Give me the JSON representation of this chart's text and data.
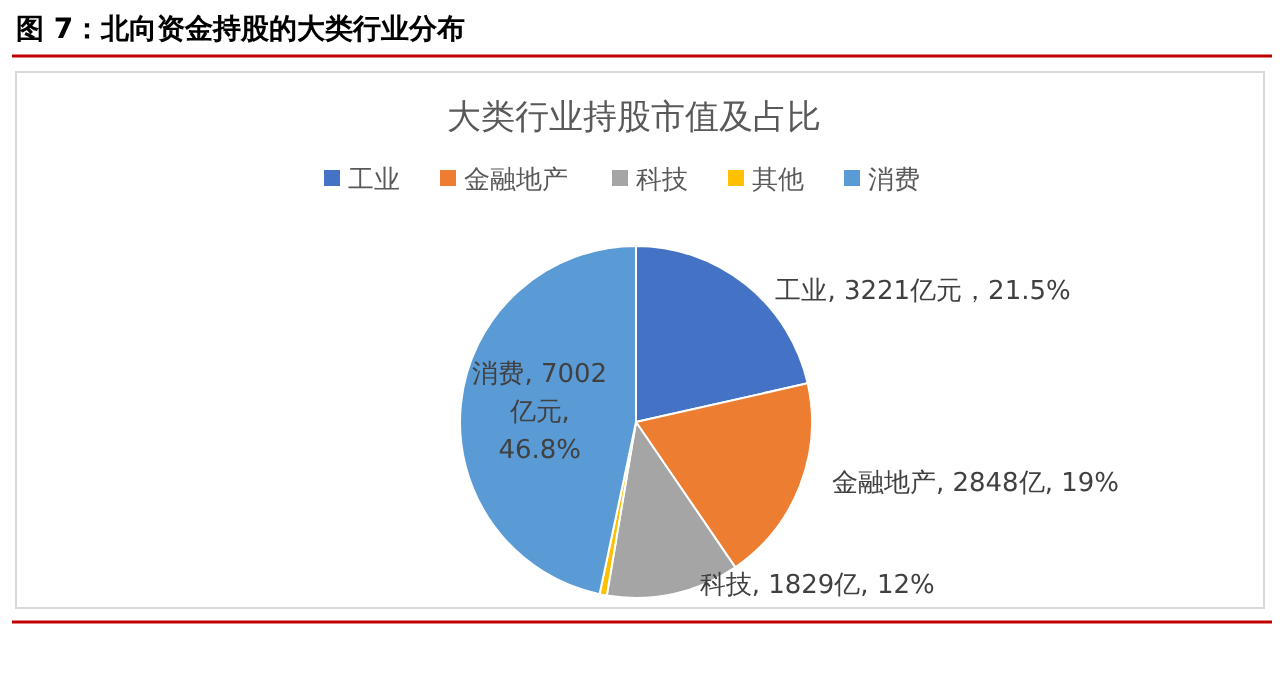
{
  "chart_data": {
    "type": "pie",
    "title": "图 7：北向资金持股的大类行业分布",
    "subtitle": "大类行业持股市值及占比",
    "categories": [
      "工业",
      "金融地产",
      "科技",
      "其他",
      "消费"
    ],
    "values": [
      3221,
      2848,
      1829,
      100,
      7002
    ],
    "colors": [
      "#4472c4",
      "#ed7d31",
      "#a5a5a5",
      "#ffc000",
      "#5b9bd5"
    ],
    "value_labels": [
      "工业, 3221亿元，21.5%",
      "金融地产, 2848亿, 19%",
      "科技, 1829亿, 12%",
      null,
      "消费, 7002亿元, 46.8%"
    ],
    "legend": "top"
  }
}
